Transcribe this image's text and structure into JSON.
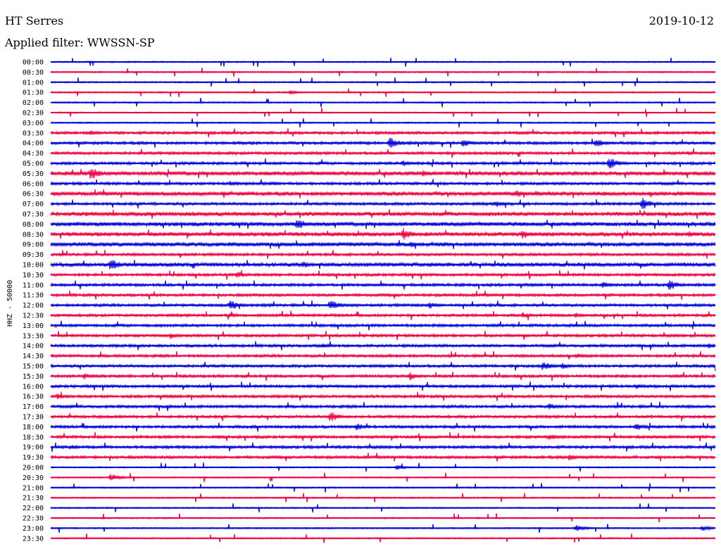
{
  "header": {
    "station": "HT Serres",
    "date": "2019-10-12",
    "filter": "Applied filter: WWSSN-SP"
  },
  "chart_data": {
    "type": "line",
    "title": "HT Serres",
    "channel_label": "HHZ - 50000",
    "row_colors": [
      "#0000dd",
      "#ee0044"
    ],
    "rows": [
      "00:00",
      "00:30",
      "01:00",
      "01:30",
      "02:00",
      "02:30",
      "03:00",
      "03:30",
      "04:00",
      "04:30",
      "05:00",
      "05:30",
      "06:00",
      "06:30",
      "07:00",
      "07:30",
      "08:00",
      "08:30",
      "09:00",
      "09:30",
      "10:00",
      "10:30",
      "11:00",
      "11:30",
      "12:00",
      "12:30",
      "13:00",
      "13:30",
      "14:00",
      "14:30",
      "15:00",
      "15:30",
      "16:00",
      "16:30",
      "17:00",
      "17:30",
      "18:00",
      "18:30",
      "19:00",
      "19:30",
      "20:00",
      "20:30",
      "21:00",
      "21:30",
      "22:00",
      "22:30",
      "23:00",
      "23:30"
    ],
    "noise_level": [
      1,
      1,
      1,
      1,
      1,
      1,
      1,
      2,
      2,
      2,
      2,
      3,
      2,
      3,
      2,
      3,
      3,
      3,
      3,
      2,
      3,
      2,
      2,
      2,
      2,
      2,
      2,
      2,
      2,
      2,
      2,
      2,
      2,
      2,
      2,
      2,
      2,
      2,
      2,
      2,
      1,
      1,
      1,
      1,
      1,
      1,
      1,
      1
    ],
    "events": [
      {
        "row": 3,
        "t": 0.36,
        "amp": 3
      },
      {
        "row": 7,
        "t": 0.06,
        "amp": 4
      },
      {
        "row": 8,
        "t": 0.51,
        "amp": 9
      },
      {
        "row": 8,
        "t": 0.62,
        "amp": 6
      },
      {
        "row": 8,
        "t": 0.82,
        "amp": 8
      },
      {
        "row": 10,
        "t": 0.53,
        "amp": 5
      },
      {
        "row": 10,
        "t": 0.84,
        "amp": 9
      },
      {
        "row": 11,
        "t": 0.06,
        "amp": 10
      },
      {
        "row": 11,
        "t": 0.56,
        "amp": 5
      },
      {
        "row": 12,
        "t": 0.27,
        "amp": 4
      },
      {
        "row": 12,
        "t": 0.33,
        "amp": 4
      },
      {
        "row": 13,
        "t": 0.7,
        "amp": 6
      },
      {
        "row": 13,
        "t": 0.73,
        "amp": 4
      },
      {
        "row": 14,
        "t": 0.67,
        "amp": 5
      },
      {
        "row": 14,
        "t": 0.89,
        "amp": 9
      },
      {
        "row": 16,
        "t": 0.37,
        "amp": 9
      },
      {
        "row": 17,
        "t": 0.53,
        "amp": 9
      },
      {
        "row": 17,
        "t": 0.71,
        "amp": 7
      },
      {
        "row": 17,
        "t": 0.96,
        "amp": 6
      },
      {
        "row": 18,
        "t": 0.54,
        "amp": 5
      },
      {
        "row": 20,
        "t": 0.09,
        "amp": 9
      },
      {
        "row": 20,
        "t": 0.38,
        "amp": 5
      },
      {
        "row": 21,
        "t": 0.28,
        "amp": 5
      },
      {
        "row": 22,
        "t": 0.83,
        "amp": 5
      },
      {
        "row": 22,
        "t": 0.93,
        "amp": 8
      },
      {
        "row": 24,
        "t": 0.27,
        "amp": 8
      },
      {
        "row": 24,
        "t": 0.42,
        "amp": 8
      },
      {
        "row": 24,
        "t": 0.57,
        "amp": 5
      },
      {
        "row": 25,
        "t": 0.27,
        "amp": 4
      },
      {
        "row": 25,
        "t": 0.71,
        "amp": 5
      },
      {
        "row": 25,
        "t": 0.79,
        "amp": 4
      },
      {
        "row": 27,
        "t": 0.18,
        "amp": 5
      },
      {
        "row": 28,
        "t": 0.41,
        "amp": 4
      },
      {
        "row": 28,
        "t": 0.99,
        "amp": 4
      },
      {
        "row": 29,
        "t": 0.79,
        "amp": 4
      },
      {
        "row": 30,
        "t": 0.74,
        "amp": 7
      },
      {
        "row": 30,
        "t": 0.77,
        "amp": 5
      },
      {
        "row": 31,
        "t": 0.05,
        "amp": 5
      },
      {
        "row": 31,
        "t": 0.54,
        "amp": 6
      },
      {
        "row": 32,
        "t": 0.88,
        "amp": 4
      },
      {
        "row": 33,
        "t": 0.01,
        "amp": 5
      },
      {
        "row": 34,
        "t": 0.75,
        "amp": 5
      },
      {
        "row": 35,
        "t": 0.42,
        "amp": 8
      },
      {
        "row": 36,
        "t": 0.46,
        "amp": 6
      },
      {
        "row": 36,
        "t": 0.88,
        "amp": 6
      },
      {
        "row": 37,
        "t": 0.75,
        "amp": 5
      },
      {
        "row": 38,
        "t": 0.03,
        "amp": 4
      },
      {
        "row": 39,
        "t": 0.78,
        "amp": 6
      },
      {
        "row": 40,
        "t": 0.52,
        "amp": 4
      },
      {
        "row": 41,
        "t": 0.09,
        "amp": 6
      },
      {
        "row": 46,
        "t": 0.79,
        "amp": 5
      },
      {
        "row": 46,
        "t": 0.98,
        "amp": 4
      }
    ]
  }
}
